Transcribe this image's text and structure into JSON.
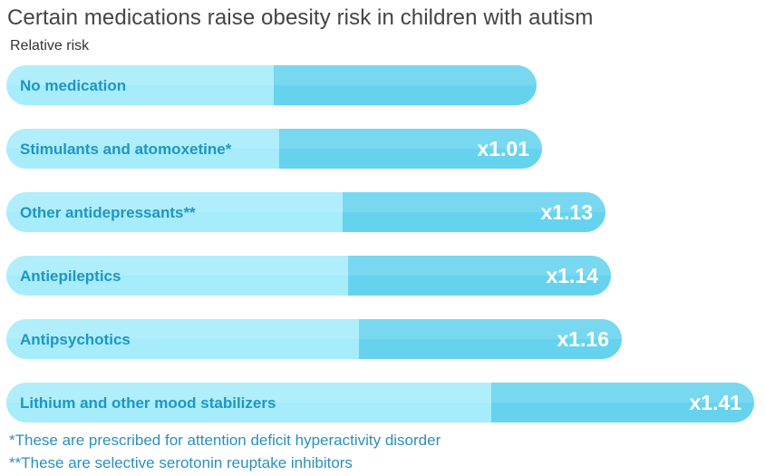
{
  "title": "Certain medications raise obesity risk in children with autism",
  "subtitle": "Relative risk",
  "chart_data": {
    "type": "bar",
    "orientation": "horizontal",
    "title": "Certain medications raise obesity risk in children with autism",
    "ylabel": "Relative risk",
    "categories": [
      "No medication",
      "Stimulants and atomoxetine*",
      "Other antidepressants**",
      "Antiepileptics",
      "Antipsychotics",
      "Lithium and other mood stabilizers"
    ],
    "values": [
      1.0,
      1.01,
      1.13,
      1.14,
      1.16,
      1.41
    ],
    "value_labels": [
      "",
      "x1.01",
      "x1.13",
      "x1.14",
      "x1.16",
      "x1.41"
    ],
    "colors": {
      "light": "#a6ecfb",
      "dark": "#66d3ee",
      "category_text": "#1f96c2",
      "value_text": "#ffffff"
    }
  },
  "footnotes": [
    "*These are prescribed for attention deficit hyperactivity disorder",
    "**These are selective serotonin reuptake inhibitors"
  ]
}
